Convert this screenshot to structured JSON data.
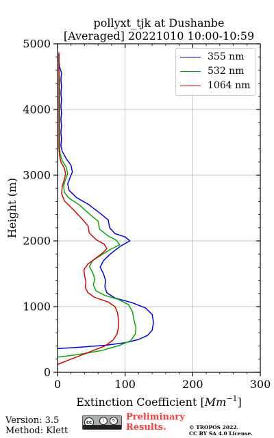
{
  "chart_data": {
    "type": "line",
    "title": "pollyxt_tjk at Dushanbe",
    "subtitle": "[Averaged] 20221010 10:00-10:59",
    "xlabel": "Extinction Coefficient [Mm^-1]",
    "xlabel_parts": {
      "text": "Extinction Coefficient [",
      "unit_base": "Mm",
      "unit_exp": "−1",
      "close": "]"
    },
    "ylabel": "Height (m)",
    "xlim": [
      0,
      300
    ],
    "ylim": [
      0,
      5000
    ],
    "x_ticks": [
      "0",
      "100",
      "200",
      "300"
    ],
    "y_ticks": [
      "0",
      "1000",
      "2000",
      "3000",
      "4000",
      "5000"
    ],
    "grid": true,
    "legend_position": "top-right",
    "series": [
      {
        "name": "355 nm",
        "color": "#0000ee",
        "points": [
          [
            0,
            360
          ],
          [
            30,
            380
          ],
          [
            70,
            410
          ],
          [
            100,
            450
          ],
          [
            120,
            500
          ],
          [
            133,
            560
          ],
          [
            140,
            640
          ],
          [
            142,
            760
          ],
          [
            140,
            880
          ],
          [
            130,
            980
          ],
          [
            110,
            1060
          ],
          [
            85,
            1130
          ],
          [
            73,
            1210
          ],
          [
            70,
            1300
          ],
          [
            71,
            1400
          ],
          [
            68,
            1500
          ],
          [
            63,
            1600
          ],
          [
            68,
            1700
          ],
          [
            78,
            1800
          ],
          [
            93,
            1920
          ],
          [
            107,
            2000
          ],
          [
            100,
            2060
          ],
          [
            85,
            2110
          ],
          [
            77,
            2200
          ],
          [
            75,
            2320
          ],
          [
            63,
            2420
          ],
          [
            45,
            2560
          ],
          [
            28,
            2660
          ],
          [
            17,
            2770
          ],
          [
            15,
            2870
          ],
          [
            18,
            2950
          ],
          [
            22,
            3050
          ],
          [
            20,
            3150
          ],
          [
            13,
            3250
          ],
          [
            7,
            3360
          ],
          [
            5,
            3450
          ],
          [
            6,
            3550
          ],
          [
            5,
            3650
          ],
          [
            6,
            3750
          ],
          [
            5,
            3850
          ],
          [
            6,
            3950
          ],
          [
            5,
            4050
          ],
          [
            6,
            4150
          ],
          [
            5,
            4250
          ],
          [
            6,
            4350
          ],
          [
            5,
            4450
          ],
          [
            6,
            4550
          ],
          [
            3,
            4650
          ],
          [
            2,
            4750
          ],
          [
            2,
            4850
          ]
        ]
      },
      {
        "name": "532 nm",
        "color": "#00aa00",
        "points": [
          [
            0,
            230
          ],
          [
            30,
            270
          ],
          [
            65,
            330
          ],
          [
            92,
            410
          ],
          [
            108,
            480
          ],
          [
            115,
            580
          ],
          [
            116,
            680
          ],
          [
            113,
            800
          ],
          [
            111,
            920
          ],
          [
            105,
            1030
          ],
          [
            90,
            1110
          ],
          [
            70,
            1170
          ],
          [
            57,
            1240
          ],
          [
            53,
            1330
          ],
          [
            55,
            1420
          ],
          [
            52,
            1520
          ],
          [
            47,
            1610
          ],
          [
            52,
            1700
          ],
          [
            67,
            1800
          ],
          [
            80,
            1880
          ],
          [
            92,
            1940
          ],
          [
            87,
            2010
          ],
          [
            74,
            2080
          ],
          [
            62,
            2180
          ],
          [
            60,
            2300
          ],
          [
            47,
            2410
          ],
          [
            32,
            2550
          ],
          [
            17,
            2650
          ],
          [
            10,
            2740
          ],
          [
            9,
            2840
          ],
          [
            12,
            2940
          ],
          [
            15,
            3020
          ],
          [
            13,
            3120
          ],
          [
            7,
            3220
          ],
          [
            4,
            3320
          ],
          [
            3,
            3420
          ],
          [
            3,
            3550
          ],
          [
            3,
            3700
          ],
          [
            3,
            3850
          ],
          [
            3,
            4000
          ],
          [
            3,
            4150
          ],
          [
            3,
            4300
          ],
          [
            3,
            4450
          ],
          [
            2,
            4600
          ],
          [
            2,
            4750
          ],
          [
            2,
            4850
          ]
        ]
      },
      {
        "name": "1064 nm",
        "color": "#dd0000",
        "points": [
          [
            0,
            120
          ],
          [
            20,
            200
          ],
          [
            45,
            300
          ],
          [
            70,
            400
          ],
          [
            82,
            490
          ],
          [
            88,
            580
          ],
          [
            90,
            680
          ],
          [
            90,
            790
          ],
          [
            89,
            900
          ],
          [
            85,
            1000
          ],
          [
            75,
            1070
          ],
          [
            55,
            1140
          ],
          [
            45,
            1210
          ],
          [
            41,
            1290
          ],
          [
            42,
            1380
          ],
          [
            40,
            1470
          ],
          [
            39,
            1560
          ],
          [
            45,
            1650
          ],
          [
            57,
            1740
          ],
          [
            67,
            1820
          ],
          [
            73,
            1880
          ],
          [
            69,
            1950
          ],
          [
            57,
            2020
          ],
          [
            47,
            2120
          ],
          [
            45,
            2230
          ],
          [
            35,
            2350
          ],
          [
            22,
            2490
          ],
          [
            10,
            2610
          ],
          [
            6,
            2720
          ],
          [
            7,
            2830
          ],
          [
            10,
            2940
          ],
          [
            12,
            3020
          ],
          [
            10,
            3110
          ],
          [
            5,
            3200
          ],
          [
            3,
            3300
          ],
          [
            2,
            3420
          ],
          [
            2,
            3600
          ],
          [
            2,
            3800
          ],
          [
            2,
            4000
          ],
          [
            2,
            4200
          ],
          [
            2,
            4400
          ],
          [
            2,
            4600
          ],
          [
            2,
            4800
          ],
          [
            2,
            4870
          ]
        ]
      }
    ]
  },
  "footer": {
    "version": "Version: 3.5",
    "method": "Method: Klett",
    "preliminary_line1": "Preliminary",
    "preliminary_line2": "Results.",
    "copyright_line1": "© TROPOS 2022.",
    "copyright_line2": "CC BY SA 4.0 License.",
    "license_badge_text": "BY   SA"
  }
}
